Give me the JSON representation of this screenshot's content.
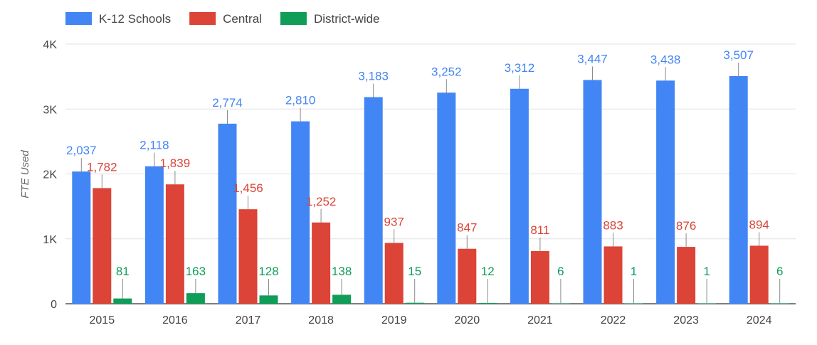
{
  "chart_data": {
    "type": "bar",
    "title": "",
    "xlabel": "",
    "ylabel": "FTE Used",
    "ylim": [
      0,
      4000
    ],
    "y_ticks": [
      "0",
      "1K",
      "2K",
      "3K",
      "4K"
    ],
    "grid": true,
    "legend_position": "top-left",
    "categories": [
      "2015",
      "2016",
      "2017",
      "2018",
      "2019",
      "2020",
      "2021",
      "2022",
      "2023",
      "2024"
    ],
    "series": [
      {
        "name": "K-12 Schools",
        "color": "#4285f4",
        "values": [
          2037,
          2118,
          2774,
          2810,
          3183,
          3252,
          3312,
          3447,
          3438,
          3507
        ],
        "labels": [
          "2,037",
          "2,118",
          "2,774",
          "2,810",
          "3,183",
          "3,252",
          "3,312",
          "3,447",
          "3,438",
          "3,507"
        ]
      },
      {
        "name": "Central",
        "color": "#db4437",
        "values": [
          1782,
          1839,
          1456,
          1252,
          937,
          847,
          811,
          883,
          876,
          894
        ],
        "labels": [
          "1,782",
          "1,839",
          "1,456",
          "1,252",
          "937",
          "847",
          "811",
          "883",
          "876",
          "894"
        ]
      },
      {
        "name": "District-wide",
        "color": "#0f9d58",
        "values": [
          81,
          163,
          128,
          138,
          15,
          12,
          6,
          1,
          1,
          6
        ],
        "labels": [
          "81",
          "163",
          "128",
          "138",
          "15",
          "12",
          "6",
          "1",
          "1",
          "6"
        ]
      }
    ]
  }
}
